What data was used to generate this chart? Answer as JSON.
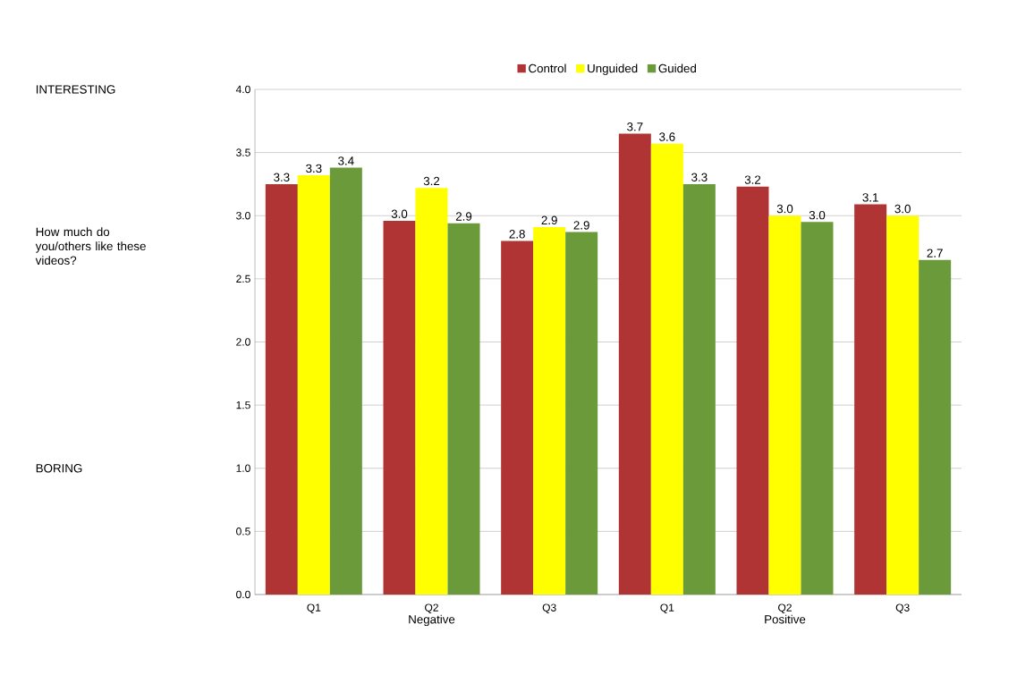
{
  "chart_data": {
    "type": "bar",
    "annotations": [
      "INTERESTING",
      "How much do you/others like these videos?",
      "BORING",
      "Negative",
      "Positive"
    ],
    "categories": [
      "Q1",
      "Q2",
      "Q3",
      "Q1",
      "Q2",
      "Q3"
    ],
    "series": [
      {
        "name": "Control",
        "color": "#b03434",
        "values": [
          3.25,
          2.96,
          2.8,
          3.65,
          3.23,
          3.09
        ],
        "value_labels": [
          "3.3",
          "3.0",
          "2.8",
          "3.7",
          "3.2",
          "3.1"
        ]
      },
      {
        "name": "Unguided",
        "color": "#ffff00",
        "values": [
          3.32,
          3.22,
          2.91,
          3.57,
          3.0,
          3.0
        ],
        "value_labels": [
          "3.3",
          "3.2",
          "2.9",
          "3.6",
          "3.0",
          "3.0"
        ]
      },
      {
        "name": "Guided",
        "color": "#6b9a3a",
        "values": [
          3.38,
          2.94,
          2.87,
          3.25,
          2.95,
          2.65
        ],
        "value_labels": [
          "3.4",
          "2.9",
          "2.9",
          "3.3",
          "3.0",
          "2.7"
        ]
      }
    ],
    "ylim": [
      0,
      4
    ],
    "yticks": [
      {
        "value": 0,
        "label": "0.0"
      },
      {
        "value": 0.5,
        "label": "0.5"
      },
      {
        "value": 1,
        "label": "1.0"
      },
      {
        "value": 1.5,
        "label": "1.5"
      },
      {
        "value": 2,
        "label": "2.0"
      },
      {
        "value": 2.5,
        "label": "2.5"
      },
      {
        "value": 3,
        "label": "3.0"
      },
      {
        "value": 3.5,
        "label": "3.5"
      },
      {
        "value": 4,
        "label": "4.0"
      }
    ],
    "grid": "y",
    "legend": "top"
  }
}
